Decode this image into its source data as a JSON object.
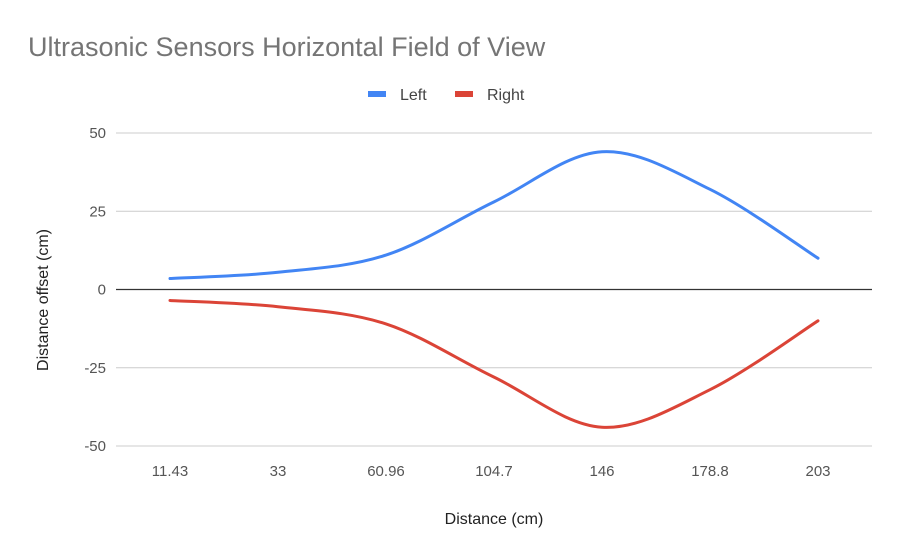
{
  "chart_data": {
    "type": "line",
    "title": "Ultrasonic Sensors Horizontal Field of View",
    "xlabel": "Distance (cm)",
    "ylabel": "Distance offset (cm)",
    "categories": [
      "11.43",
      "33",
      "60.96",
      "104.7",
      "146",
      "178.8",
      "203"
    ],
    "series": [
      {
        "name": "Left",
        "color": "#4285f4",
        "values": [
          3.5,
          5.5,
          11,
          28,
          44,
          32,
          10
        ]
      },
      {
        "name": "Right",
        "color": "#db4437",
        "values": [
          -3.5,
          -5.5,
          -11,
          -28,
          -44,
          -32,
          -10
        ]
      }
    ],
    "ylim": [
      -50,
      50
    ],
    "yticks": [
      "50",
      "25",
      "0",
      "-25",
      "-50"
    ],
    "ytick_values": [
      50,
      25,
      0,
      -25,
      -50
    ],
    "legend": "top",
    "grid": true,
    "smooth": true
  }
}
